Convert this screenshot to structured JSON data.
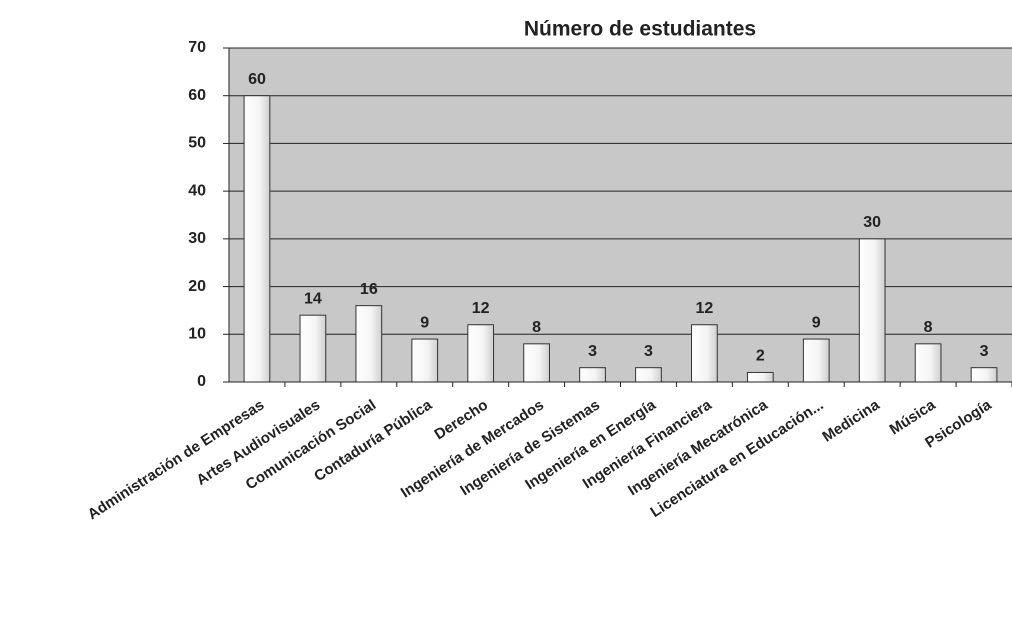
{
  "chart_data": {
    "type": "bar",
    "title": "Número de estudiantes",
    "categories": [
      "Administración de Empresas",
      "Artes Audiovisuales",
      "Comunicación Social",
      "Contaduría Pública",
      "Derecho",
      "Ingeniería de Mercados",
      "Ingeniería de Sistemas",
      "Ingeniería en Energía",
      "Ingeniería Financiera",
      "Ingeniería Mecatrónica",
      "Licenciatura en Educación...",
      "Medicina",
      "Música",
      "Psicología"
    ],
    "values": [
      60,
      14,
      16,
      9,
      12,
      8,
      3,
      3,
      12,
      2,
      9,
      30,
      8,
      3
    ],
    "color": "#ffffff",
    "plot_background": "#c8c8c8",
    "ylim": [
      0,
      70
    ],
    "yticks": [
      0,
      10,
      20,
      30,
      40,
      50,
      60,
      70
    ],
    "grid": true
  }
}
